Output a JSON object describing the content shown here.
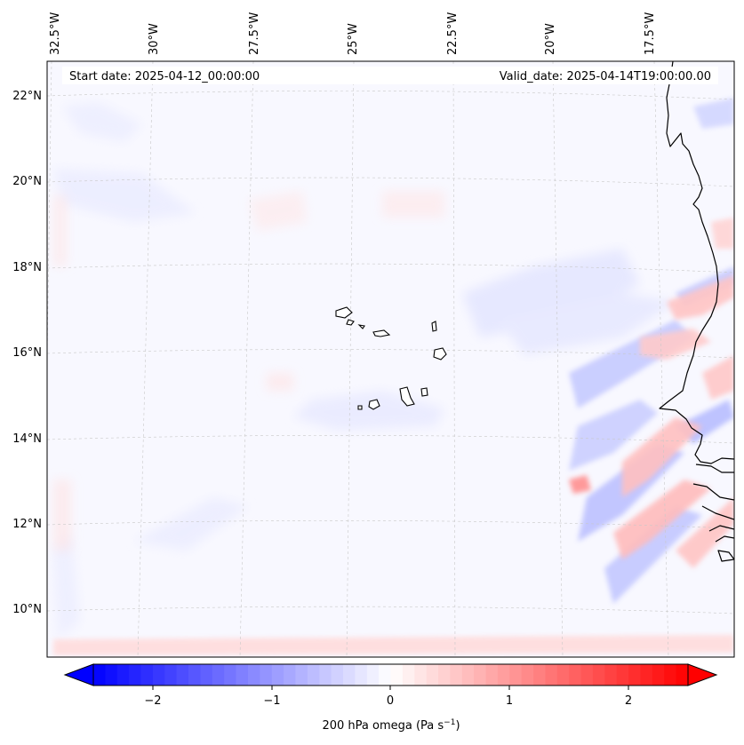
{
  "header": {
    "start_date": "Start date: 2025-04-12_00:00:00",
    "valid_date": "Valid_date: 2025-04-14T19:00:00.00"
  },
  "longitude_labels": [
    "32.5°W",
    "30°W",
    "27.5°W",
    "25°W",
    "22.5°W",
    "20°W",
    "17.5°W"
  ],
  "latitude_labels": [
    "22°N",
    "20°N",
    "18°N",
    "16°N",
    "14°N",
    "12°N",
    "10°N"
  ],
  "colorbar": {
    "ticks": [
      "−2",
      "−1",
      "0",
      "1",
      "2"
    ],
    "label": "200 hPa omega (Pa s",
    "label_sup": "−1",
    "label_close": ")",
    "range": [
      -2.5,
      2.5
    ]
  },
  "colors": {
    "negative": "#0000ff",
    "positive": "#ff0000",
    "neutral": "#ffffff",
    "coastline": "#000000"
  }
}
